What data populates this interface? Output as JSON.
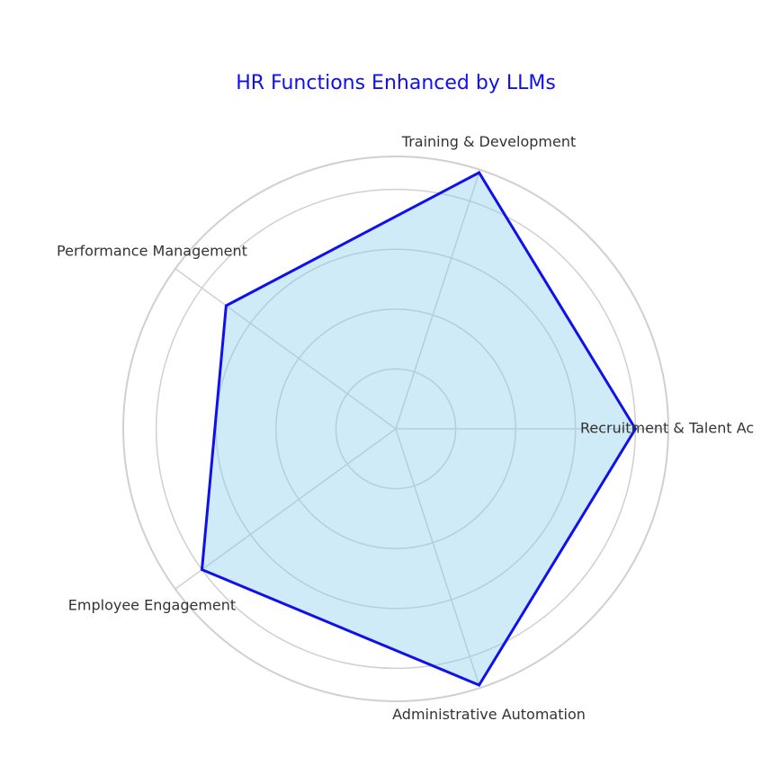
{
  "chart_data": {
    "type": "radar",
    "title": "HR Functions Enhanced by LLMs",
    "categories": [
      "Recruitment & Talent Ac",
      "Training & Development",
      "Performance Management",
      "Employee Engagement",
      "Administrative Automation"
    ],
    "values": [
      4,
      4.5,
      3.5,
      4,
      4.5
    ],
    "color": "#1010ee",
    "fill": "#87ceeb",
    "ylim": [
      0,
      4.55
    ],
    "yticks": [
      1,
      2,
      3,
      4
    ],
    "grid": true
  }
}
